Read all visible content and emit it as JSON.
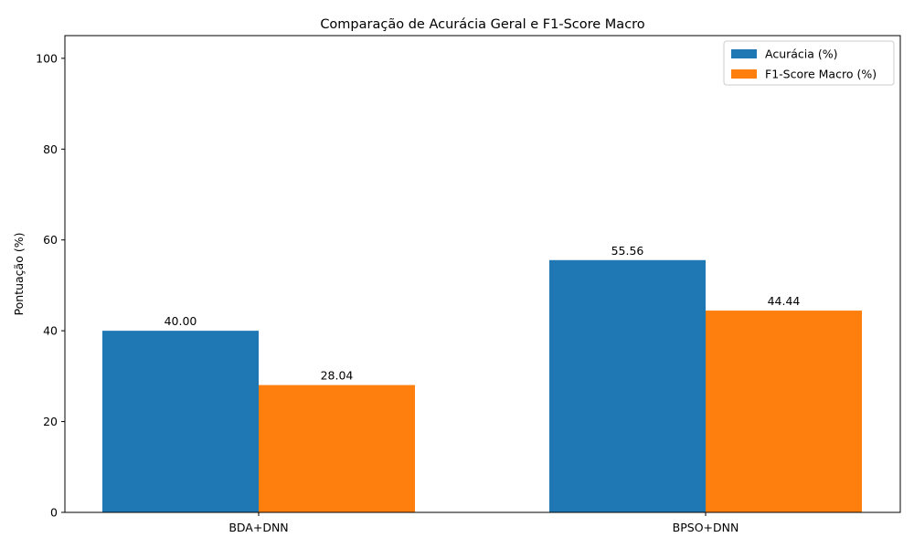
{
  "chart_data": {
    "type": "bar",
    "title": "Comparação de Acurácia Geral e F1-Score Macro",
    "xlabel": "",
    "ylabel": "Pontuação (%)",
    "categories": [
      "BDA+DNN",
      "BPSO+DNN"
    ],
    "series": [
      {
        "name": "Acurácia (%)",
        "color": "#1f77b4",
        "values": [
          40.0,
          55.56
        ]
      },
      {
        "name": "F1-Score Macro (%)",
        "color": "#ff7f0e",
        "values": [
          28.04,
          44.44
        ]
      }
    ],
    "ylim": [
      0,
      105
    ],
    "yticks": [
      0,
      20,
      40,
      60,
      80,
      100
    ],
    "value_label_format": "2 decimals",
    "grid": false,
    "legend_position": "top-right"
  }
}
